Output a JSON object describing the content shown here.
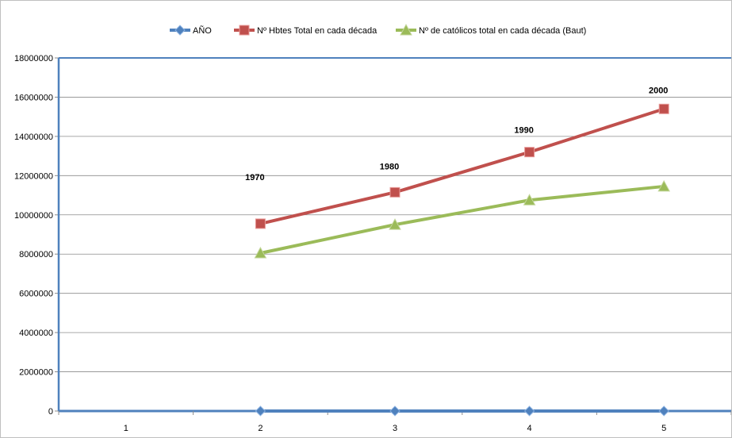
{
  "chart_data": {
    "type": "line",
    "categories": [
      "1",
      "2",
      "3",
      "4",
      "5"
    ],
    "series": [
      {
        "name": "AÑO",
        "values": [
          null,
          1970,
          1980,
          1990,
          2000
        ],
        "color": "#4f81bd",
        "marker": "diamond"
      },
      {
        "name": "Nº Hbtes Total  en cada década",
        "values": [
          null,
          9550000,
          11150000,
          13200000,
          15400000
        ],
        "color": "#c0504d",
        "marker": "square",
        "data_labels": [
          "",
          "1970",
          "1980",
          "1990",
          "2000"
        ]
      },
      {
        "name": "Nº de católicos total en cada década (Baut)",
        "values": [
          null,
          8050000,
          9500000,
          10750000,
          11450000
        ],
        "color": "#9bbb59",
        "marker": "triangle"
      }
    ],
    "y_ticks": [
      "0",
      "2000000",
      "4000000",
      "6000000",
      "8000000",
      "10000000",
      "12000000",
      "14000000",
      "16000000",
      "18000000"
    ],
    "ylim": [
      0,
      18000000
    ],
    "grid": true,
    "legend_position": "top"
  }
}
